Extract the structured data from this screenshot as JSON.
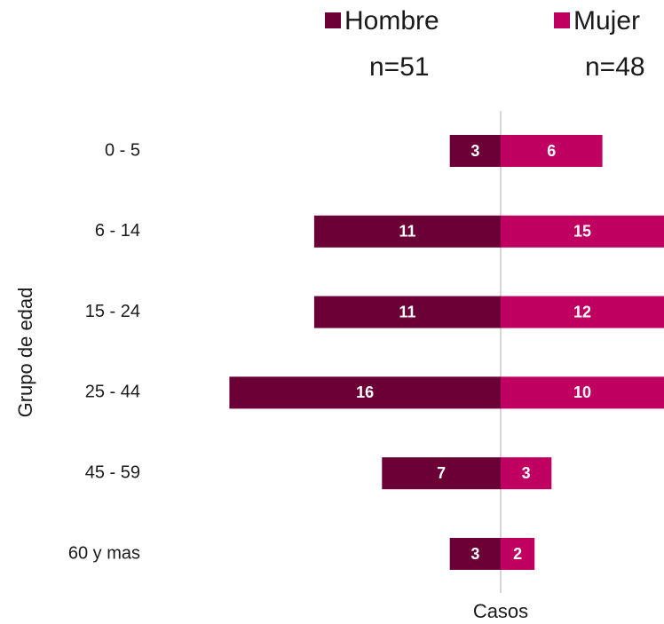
{
  "chart_data": {
    "type": "pyramid",
    "y_label": "Grupo de edad",
    "x_label": "Casos",
    "categories": [
      "0 - 5",
      "6 - 14",
      "15 - 24",
      "25 - 44",
      "45 - 59",
      "60 y mas"
    ],
    "series": [
      {
        "name": "Hombre",
        "n_label": "n=51",
        "color": "#6a0036",
        "values": [
          3,
          11,
          11,
          16,
          7,
          3
        ]
      },
      {
        "name": "Mujer",
        "n_label": "n=48",
        "color": "#bf0060",
        "values": [
          6,
          15,
          12,
          10,
          3,
          2
        ]
      }
    ]
  }
}
